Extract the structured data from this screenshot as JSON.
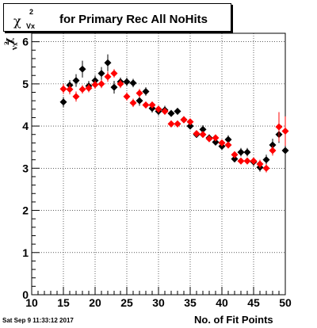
{
  "chart_data": {
    "type": "scatter",
    "title": "for Primary Rec All NoHits",
    "title_symbol": "χ",
    "title_symbol_sup": "2",
    "title_symbol_sub": "Vx",
    "xlabel": "No. of Fit Points",
    "ylabel_symbol": "χ",
    "ylabel_sup": "2",
    "ylabel_sub": "Vx",
    "xlim": [
      10,
      50
    ],
    "ylim": [
      0,
      6.2
    ],
    "xticks": [
      10,
      15,
      20,
      25,
      30,
      35,
      40,
      45,
      50
    ],
    "yticks": [
      0,
      1,
      2,
      3,
      4,
      5,
      6
    ],
    "grid": true,
    "timestamp": "Sat Sep  9 11:33:12 2017",
    "series": [
      {
        "color": "#000000",
        "x": [
          15,
          16,
          17,
          18,
          19,
          20,
          21,
          22,
          23,
          24,
          25,
          26,
          27,
          28,
          29,
          30,
          31,
          32,
          33,
          34,
          35,
          36,
          37,
          38,
          39,
          40,
          41,
          42,
          43,
          44,
          45,
          46,
          47,
          48,
          49,
          50
        ],
        "y": [
          4.57,
          4.97,
          5.08,
          5.35,
          4.95,
          5.08,
          5.25,
          5.5,
          4.92,
          5.05,
          5.05,
          5.02,
          4.6,
          4.82,
          4.42,
          4.35,
          4.38,
          4.3,
          4.35,
          4.15,
          4.0,
          3.8,
          3.92,
          3.72,
          3.62,
          3.52,
          3.68,
          3.22,
          3.38,
          3.38,
          3.15,
          3.02,
          3.2,
          3.55,
          3.8,
          3.42
        ],
        "err": [
          0.12,
          0.12,
          0.15,
          0.2,
          0.12,
          0.12,
          0.15,
          0.2,
          0.15,
          0.1,
          0.1,
          0.1,
          0.12,
          0.1,
          0.1,
          0.1,
          0.1,
          0.08,
          0.08,
          0.08,
          0.08,
          0.08,
          0.1,
          0.08,
          0.08,
          0.08,
          0.1,
          0.08,
          0.1,
          0.1,
          0.1,
          0.1,
          0.12,
          0.15,
          0.2,
          0.3
        ]
      },
      {
        "color": "#ff0000",
        "x": [
          15,
          16,
          17,
          18,
          19,
          20,
          21,
          22,
          23,
          24,
          25,
          26,
          27,
          28,
          29,
          30,
          31,
          32,
          33,
          34,
          35,
          36,
          37,
          38,
          39,
          40,
          41,
          42,
          43,
          44,
          45,
          46,
          47,
          48,
          49,
          50
        ],
        "y": [
          4.88,
          4.87,
          4.7,
          4.87,
          4.9,
          4.98,
          5.0,
          5.17,
          5.25,
          5.0,
          4.7,
          4.55,
          4.78,
          4.5,
          4.5,
          4.4,
          4.35,
          4.05,
          4.05,
          4.15,
          4.1,
          3.82,
          3.8,
          3.7,
          3.72,
          3.6,
          3.55,
          3.32,
          3.17,
          3.17,
          3.17,
          3.1,
          3.0,
          3.42,
          3.98,
          3.88
        ],
        "err": [
          0.12,
          0.12,
          0.12,
          0.1,
          0.1,
          0.1,
          0.1,
          0.12,
          0.1,
          0.1,
          0.1,
          0.1,
          0.1,
          0.08,
          0.08,
          0.08,
          0.08,
          0.08,
          0.08,
          0.08,
          0.08,
          0.08,
          0.08,
          0.08,
          0.08,
          0.08,
          0.08,
          0.08,
          0.08,
          0.08,
          0.08,
          0.1,
          0.1,
          0.12,
          0.35,
          0.35
        ]
      }
    ]
  }
}
